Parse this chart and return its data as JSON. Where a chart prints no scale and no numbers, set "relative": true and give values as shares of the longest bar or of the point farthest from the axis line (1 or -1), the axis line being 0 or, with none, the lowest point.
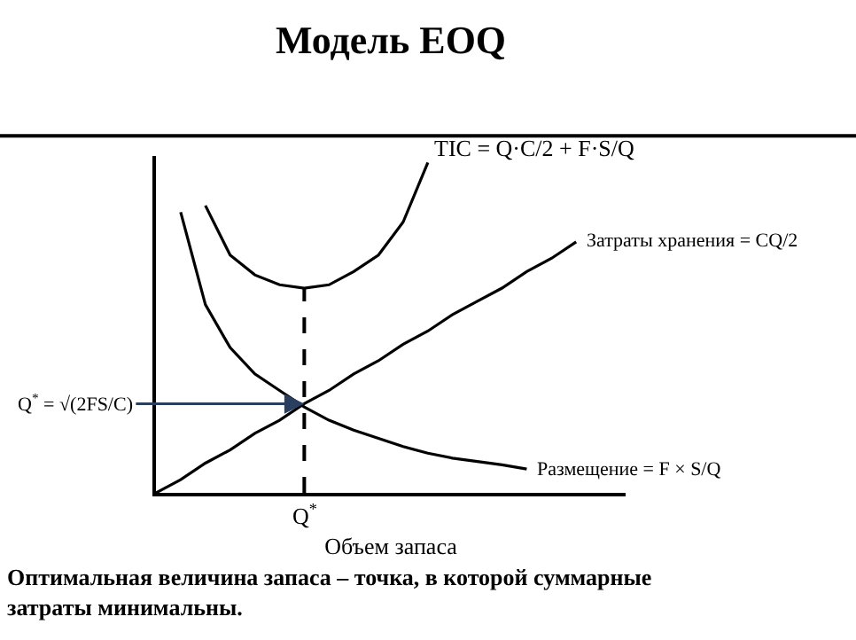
{
  "chart_data": {
    "type": "line",
    "title": "Модель EOQ",
    "xlabel": "Объем запаса",
    "relative": true,
    "legend": false,
    "marker": "none",
    "categories": [
      null,
      null,
      null,
      null,
      null,
      null,
      null,
      null,
      null,
      null,
      null,
      null,
      null,
      null,
      null,
      null,
      null,
      null,
      null,
      null
    ],
    "series": [
      {
        "name": "TIC = Q·C/2 + F·S/Q",
        "color": "#000000",
        "values": [
          null,
          null,
          0.87,
          0.72,
          0.66,
          0.63,
          0.62,
          0.63,
          0.67,
          0.72,
          0.82,
          1.0,
          null,
          null,
          null,
          null,
          null,
          null,
          null,
          null
        ]
      },
      {
        "name": "Затраты хранения = CQ/2",
        "color": "#000000",
        "values": [
          0,
          0.04,
          0.09,
          0.13,
          0.18,
          0.22,
          0.27,
          0.31,
          0.36,
          0.4,
          0.45,
          0.49,
          0.54,
          0.58,
          0.62,
          0.67,
          0.71,
          0.76,
          null,
          null
        ]
      },
      {
        "name": "Размещение = F × S/Q",
        "color": "#000000",
        "values": [
          null,
          0.85,
          0.57,
          0.44,
          0.36,
          0.31,
          0.26,
          0.22,
          0.19,
          0.165,
          0.14,
          0.12,
          0.105,
          0.095,
          0.085,
          0.072,
          null,
          null,
          null,
          null
        ]
      }
    ],
    "annotations": [
      "Q$^{*}$ = √(2FS/C)",
      "Q$^{*}$",
      "Оптимальная величина запаса – точка, в которой суммарные затраты минимальны."
    ]
  }
}
